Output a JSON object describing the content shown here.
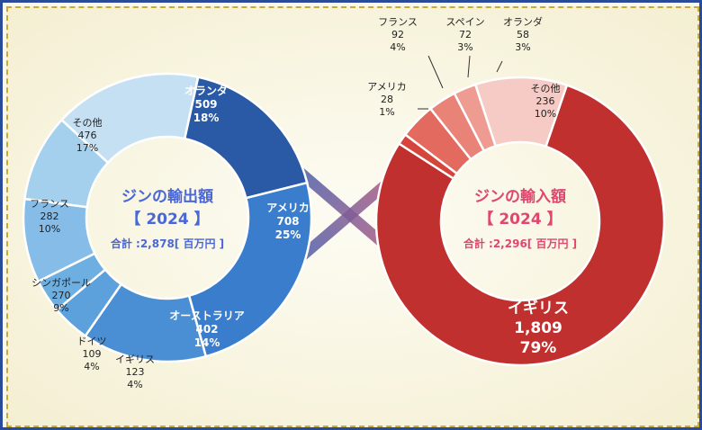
{
  "chart_data": [
    {
      "type": "pie",
      "title": "ジンの輸出額",
      "year": "【 2024 】",
      "total": "合計 :2,878[ 百万円 ]",
      "slices": [
        {
          "label": "オランダ",
          "value": 509,
          "value_text": "509",
          "percent": "18%",
          "color": "#2a5aa6"
        },
        {
          "label": "アメリカ",
          "value": 708,
          "value_text": "708",
          "percent": "25%",
          "color": "#3a7dcc"
        },
        {
          "label": "オーストラリア",
          "value": 402,
          "value_text": "402",
          "percent": "14%",
          "color": "#4a8ed4"
        },
        {
          "label": "イギリス",
          "value": 123,
          "value_text": "123",
          "percent": "4%",
          "color": "#5ca0dc"
        },
        {
          "label": "ドイツ",
          "value": 109,
          "value_text": "109",
          "percent": "4%",
          "color": "#6eafe2"
        },
        {
          "label": "シンガポール",
          "value": 270,
          "value_text": "270",
          "percent": "9%",
          "color": "#86bde8"
        },
        {
          "label": "フランス",
          "value": 282,
          "value_text": "282",
          "percent": "10%",
          "color": "#a4d0ee"
        },
        {
          "label": "その他",
          "value": 476,
          "value_text": "476",
          "percent": "17%",
          "color": "#c5e0f3"
        }
      ]
    },
    {
      "type": "pie",
      "title": "ジンの輸入額",
      "year": "【 2024 】",
      "total": "合計 :2,296[ 百万円 ]",
      "slices": [
        {
          "label": "イギリス",
          "value": 1809,
          "value_text": "1,809",
          "percent": "79%",
          "color": "#c0302f"
        },
        {
          "label": "アメリカ",
          "value": 28,
          "value_text": "28",
          "percent": "1%",
          "color": "#d5453c"
        },
        {
          "label": "フランス",
          "value": 92,
          "value_text": "92",
          "percent": "4%",
          "color": "#e36a5e"
        },
        {
          "label": "スペイン",
          "value": 72,
          "value_text": "72",
          "percent": "3%",
          "color": "#e98378"
        },
        {
          "label": "オランダ",
          "value": 58,
          "value_text": "58",
          "percent": "3%",
          "color": "#ee9c92"
        },
        {
          "label": "その他",
          "value": 236,
          "value_text": "236",
          "percent": "10%",
          "color": "#f6cbc5"
        }
      ]
    }
  ]
}
